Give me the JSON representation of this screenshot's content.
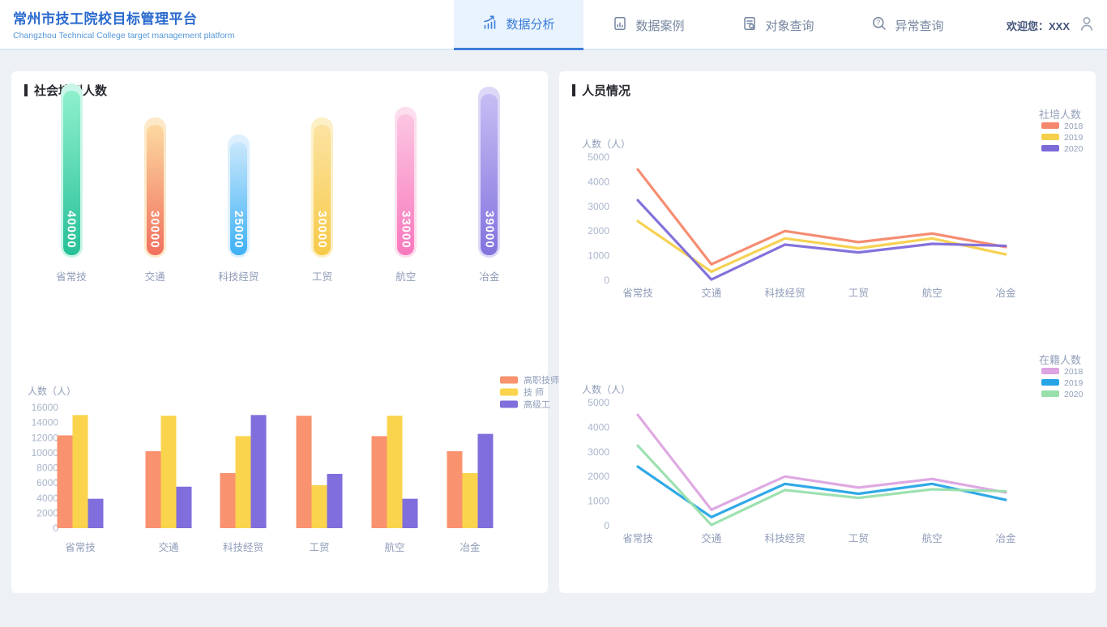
{
  "header": {
    "title": "常州市技工院校目标管理平台",
    "subtitle": "Changzhou Technical College target management platform",
    "nav": [
      {
        "label": "数据分析",
        "icon": "bar-chart-trend-icon",
        "active": true
      },
      {
        "label": "数据案例",
        "icon": "document-chart-icon",
        "active": false
      },
      {
        "label": "对象查询",
        "icon": "document-search-icon",
        "active": false
      },
      {
        "label": "异常查询",
        "icon": "search-question-icon",
        "active": false
      }
    ],
    "welcome": "欢迎您：XXX",
    "accent_color": "#3a7dd8"
  },
  "left_panel": {
    "title": "社会培训人数"
  },
  "right_panel": {
    "title": "人员情况"
  },
  "text_colors": {
    "tick": "#a9b5cb",
    "label": "#8f9cb8",
    "legend": "#93a0ba"
  },
  "chart_data": [
    {
      "id": "social-training-total",
      "type": "bar",
      "variant": "capsule",
      "categories": [
        "省常技",
        "交通",
        "科技经贸",
        "工贸",
        "航空",
        "冶金"
      ],
      "values": [
        40000,
        30000,
        25000,
        30000,
        33000,
        39000
      ],
      "value_max": 40000,
      "bar_colors": [
        {
          "top": "#8ff0cd",
          "bottom": "#27c098",
          "halo": "#c9f6e8"
        },
        {
          "top": "#fcd9a0",
          "bottom": "#f2705e",
          "halo": "#fde8c8"
        },
        {
          "top": "#c9e8fc",
          "bottom": "#3eb1f5",
          "halo": "#def0fd"
        },
        {
          "top": "#fce3a2",
          "bottom": "#f7ca49",
          "halo": "#fdefc6"
        },
        {
          "top": "#fcc6e2",
          "bottom": "#f878bd",
          "halo": "#fcdeee"
        },
        {
          "top": "#c7bdf4",
          "bottom": "#8273de",
          "halo": "#ded8f8"
        }
      ]
    },
    {
      "id": "training-by-level",
      "type": "bar",
      "categories": [
        "省常技",
        "交通",
        "科技经贸",
        "工贸",
        "航空",
        "冶金"
      ],
      "ylabel": "人数（人）",
      "ylim": [
        0,
        16000
      ],
      "ytick_step": 2000,
      "grid": false,
      "legend_position": "top-right",
      "series": [
        {
          "name": "高职技师",
          "color": "#f9926e",
          "values": [
            12300,
            10200,
            7300,
            14900,
            12200,
            10200
          ]
        },
        {
          "name": "技 师",
          "color": "#fbd44e",
          "values": [
            15000,
            14900,
            12200,
            5700,
            14900,
            7300
          ]
        },
        {
          "name": "高级工",
          "color": "#7f6edc",
          "values": [
            3900,
            5500,
            15000,
            7200,
            3900,
            12500
          ]
        }
      ]
    },
    {
      "id": "shepei-renshu",
      "type": "line",
      "legend_title": "社培人数",
      "categories": [
        "省常技",
        "交通",
        "科技经贸",
        "工贸",
        "航空",
        "冶金"
      ],
      "ylabel": "人数（人）",
      "ylim": [
        0,
        5000
      ],
      "ytick_step": 1000,
      "grid": false,
      "legend_position": "top-right",
      "series": [
        {
          "name": "2018",
          "color": "#f4876c",
          "values": [
            4500,
            650,
            2000,
            1550,
            1900,
            1350
          ]
        },
        {
          "name": "2019",
          "color": "#f5d04a",
          "values": [
            2400,
            350,
            1700,
            1300,
            1700,
            1050
          ]
        },
        {
          "name": "2020",
          "color": "#7d6ad9",
          "values": [
            3250,
            30,
            1450,
            1130,
            1480,
            1400
          ]
        }
      ]
    },
    {
      "id": "zaiji-renshu",
      "type": "line",
      "legend_title": "在籍人数",
      "categories": [
        "省常技",
        "交通",
        "科技经贸",
        "工贸",
        "航空",
        "冶金"
      ],
      "ylabel": "人数（人）",
      "ylim": [
        0,
        5000
      ],
      "ytick_step": 1000,
      "grid": false,
      "legend_position": "top-right",
      "series": [
        {
          "name": "2018",
          "color": "#dca4e0",
          "values": [
            4500,
            650,
            2000,
            1550,
            1900,
            1350
          ]
        },
        {
          "name": "2019",
          "color": "#25a4e5",
          "values": [
            2400,
            350,
            1700,
            1300,
            1700,
            1050
          ]
        },
        {
          "name": "2020",
          "color": "#98dfac",
          "values": [
            3250,
            30,
            1450,
            1130,
            1480,
            1400
          ]
        }
      ]
    }
  ]
}
